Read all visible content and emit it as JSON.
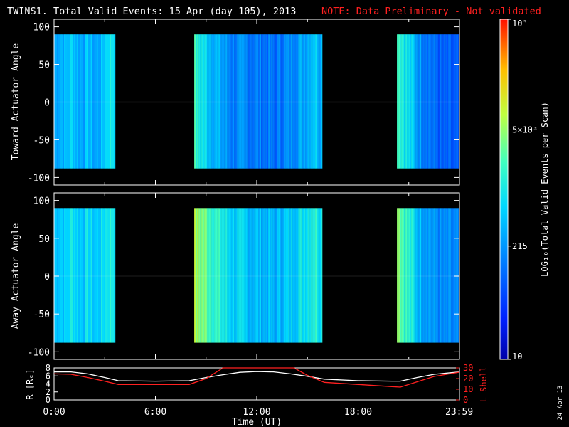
{
  "header": {
    "title": "TWINS1. Total Valid Events: 15 Apr (day 105), 2013",
    "note": "NOTE: Data Preliminary - Not validated",
    "note_color": "#ff2020"
  },
  "footer": {
    "date_stamp": "24 Apr 13"
  },
  "chart_data": [
    {
      "type": "heatmap",
      "name": "toward-panel",
      "ylabel": "Toward Actuator Angle",
      "ylim": [
        -110,
        110
      ],
      "yticks": [
        100,
        50,
        0,
        -50,
        -100
      ],
      "xlim": [
        0,
        24
      ],
      "data_y_range": [
        -88,
        90
      ],
      "intervals_hours": [
        [
          0,
          3.6
        ],
        [
          8.3,
          15.8
        ],
        [
          20.3,
          24
        ]
      ],
      "profile_note": "per-hour log-intensity (0-1) across coverage",
      "profile": [
        [
          0.0,
          0.35
        ],
        [
          0.3,
          0.4
        ],
        [
          0.6,
          0.38
        ],
        [
          1.0,
          0.45
        ],
        [
          1.3,
          0.4
        ],
        [
          1.7,
          0.36
        ],
        [
          2.0,
          0.42
        ],
        [
          2.4,
          0.35
        ],
        [
          2.8,
          0.4
        ],
        [
          3.2,
          0.5
        ],
        [
          3.6,
          0.5
        ],
        [
          8.3,
          0.55
        ],
        [
          9.0,
          0.45
        ],
        [
          9.8,
          0.36
        ],
        [
          10.5,
          0.3
        ],
        [
          11.5,
          0.3
        ],
        [
          12.3,
          0.28
        ],
        [
          13.0,
          0.26
        ],
        [
          13.6,
          0.3
        ],
        [
          14.2,
          0.34
        ],
        [
          14.8,
          0.38
        ],
        [
          15.3,
          0.45
        ],
        [
          15.8,
          0.4
        ],
        [
          20.3,
          0.62
        ],
        [
          20.5,
          0.55
        ],
        [
          21.0,
          0.45
        ],
        [
          21.5,
          0.36
        ],
        [
          22.2,
          0.28
        ],
        [
          23.0,
          0.22
        ],
        [
          24.0,
          0.2
        ]
      ]
    },
    {
      "type": "heatmap",
      "name": "away-panel",
      "ylabel": "Away Actuator Angle",
      "ylim": [
        -110,
        110
      ],
      "yticks": [
        100,
        50,
        0,
        -50,
        -100
      ],
      "xlim": [
        0,
        24
      ],
      "data_y_range": [
        -88,
        90
      ],
      "intervals_hours": [
        [
          0,
          3.6
        ],
        [
          8.3,
          15.8
        ],
        [
          20.3,
          24
        ]
      ],
      "profile": [
        [
          0.0,
          0.4
        ],
        [
          0.3,
          0.45
        ],
        [
          0.6,
          0.42
        ],
        [
          1.0,
          0.5
        ],
        [
          1.3,
          0.46
        ],
        [
          1.7,
          0.42
        ],
        [
          2.0,
          0.48
        ],
        [
          2.4,
          0.42
        ],
        [
          2.8,
          0.46
        ],
        [
          3.2,
          0.52
        ],
        [
          3.6,
          0.52
        ],
        [
          8.3,
          0.68
        ],
        [
          9.0,
          0.62
        ],
        [
          9.8,
          0.52
        ],
        [
          10.5,
          0.45
        ],
        [
          11.5,
          0.42
        ],
        [
          12.3,
          0.4
        ],
        [
          13.0,
          0.38
        ],
        [
          13.6,
          0.42
        ],
        [
          14.2,
          0.45
        ],
        [
          14.8,
          0.5
        ],
        [
          15.3,
          0.55
        ],
        [
          15.8,
          0.5
        ],
        [
          20.3,
          0.72
        ],
        [
          20.5,
          0.62
        ],
        [
          21.0,
          0.52
        ],
        [
          21.5,
          0.42
        ],
        [
          22.2,
          0.35
        ],
        [
          23.0,
          0.3
        ],
        [
          24.0,
          0.28
        ]
      ]
    },
    {
      "type": "line",
      "name": "orbit-panel",
      "xlabel": "Time (UT)",
      "xticks": [
        0,
        6,
        12,
        18,
        23.983
      ],
      "xticklabels": [
        "0:00",
        "6:00",
        "12:00",
        "18:00",
        "23:59"
      ],
      "xlim": [
        0,
        24
      ],
      "left_axis": {
        "label": "R [Rₑ]",
        "ylim": [
          0,
          8
        ],
        "ticks": [
          0,
          2,
          4,
          6,
          8
        ],
        "color": "#ffffff"
      },
      "right_axis": {
        "label": "L Shell",
        "ylim": [
          0,
          30
        ],
        "ticks": [
          0,
          10,
          20,
          30
        ],
        "color": "#ff2020"
      },
      "series": [
        {
          "name": "R",
          "axis": "left",
          "color": "#ffffff",
          "x": [
            0,
            1,
            2,
            3,
            3.8,
            6,
            8,
            9,
            10,
            11,
            12,
            13,
            14,
            15,
            16,
            18,
            20,
            20.5,
            21.5,
            22.5,
            24
          ],
          "y": [
            7.0,
            7.0,
            6.5,
            5.6,
            4.8,
            4.7,
            4.8,
            5.6,
            6.3,
            6.9,
            7.1,
            7.0,
            6.5,
            5.9,
            5.2,
            4.8,
            4.7,
            4.7,
            5.6,
            6.4,
            7.0
          ]
        },
        {
          "name": "L",
          "axis": "right",
          "color": "#ff2020",
          "x": [
            0,
            1,
            2,
            3,
            3.8,
            6,
            8,
            9,
            10,
            10.2,
            14.2,
            15,
            16,
            18,
            20,
            20.5,
            21.5,
            22.5,
            24
          ],
          "y": [
            24.5,
            24,
            21,
            17.5,
            14.5,
            14.5,
            14.5,
            20,
            31,
            31,
            31,
            23,
            16.5,
            14.5,
            12.5,
            12,
            17,
            22,
            26
          ]
        }
      ]
    },
    {
      "type": "heatmap-colorbar",
      "name": "colorbar",
      "label": "LOG₁₀(Total Valid Events per Scan)",
      "ticks": [
        "10⁵",
        "5×10³",
        "215",
        "10"
      ],
      "scale": "log",
      "range": [
        10,
        100000
      ]
    }
  ]
}
